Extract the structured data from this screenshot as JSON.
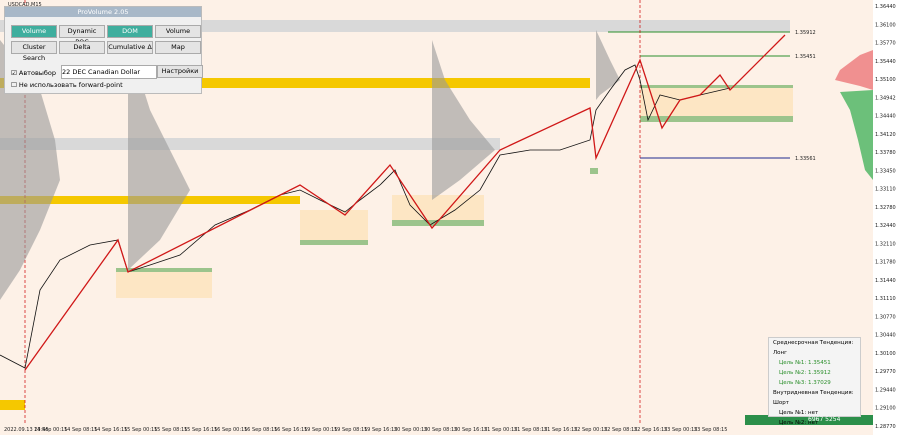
{
  "symbol": "USDCAD,M15",
  "panel": {
    "title": "ProVolume 2.05",
    "buttons": [
      "Volume Profile",
      "Dynamic POC",
      "DOM",
      "Volume",
      "Cluster Search",
      "Delta",
      "Cumulative Δ",
      "Map"
    ],
    "auto_checkbox": "Автовыбор",
    "instrument": "22 DEC Canadian Dollar",
    "settings": "Настройки",
    "forward_checkbox": "Не использовать forward-point"
  },
  "price_axis": [
    "1.36440",
    "1.36100",
    "1.35770",
    "1.35440",
    "1.35100",
    "1.34942",
    "1.34440",
    "1.34120",
    "1.33780",
    "1.33450",
    "1.33110",
    "1.32780",
    "1.32440",
    "1.32110",
    "1.31780",
    "1.31440",
    "1.31110",
    "1.30770",
    "1.30440",
    "1.30100",
    "1.29770",
    "1.29440",
    "1.29100",
    "1.28770"
  ],
  "time_axis": [
    "2022.09.13 23:45",
    "14 Sep 00:15",
    "14 Sep 08:15",
    "14 Sep 16:15",
    "15 Sep 00:15",
    "15 Sep 08:15",
    "15 Sep 16:15",
    "16 Sep 00:15",
    "16 Sep 08:15",
    "16 Sep 16:15",
    "19 Sep 00:15",
    "19 Sep 08:15",
    "19 Sep 16:15",
    "20 Sep 00:15",
    "20 Sep 08:15",
    "20 Sep 16:15",
    "21 Sep 00:15",
    "21 Sep 08:15",
    "21 Sep 16:15",
    "22 Sep 00:15",
    "22 Sep 08:15",
    "22 Sep 16:15",
    "23 Sep 00:15",
    "23 Sep 08:15"
  ],
  "levels": [
    "1.35912",
    "1.35451",
    "1.33561"
  ],
  "info": {
    "mid_trend": "Среднесрочная Тенденция: Лонг",
    "mid_targets": [
      "Цель №1: 1.35451",
      "Цель №2: 1.35912",
      "Цель №3: 1.37029"
    ],
    "intra_trend": "Внутридневная Тенденция: Шорт",
    "intra_targets": [
      "Цель №1: нет",
      "Цель №2: нет"
    ]
  },
  "footer": "6967 5254"
}
